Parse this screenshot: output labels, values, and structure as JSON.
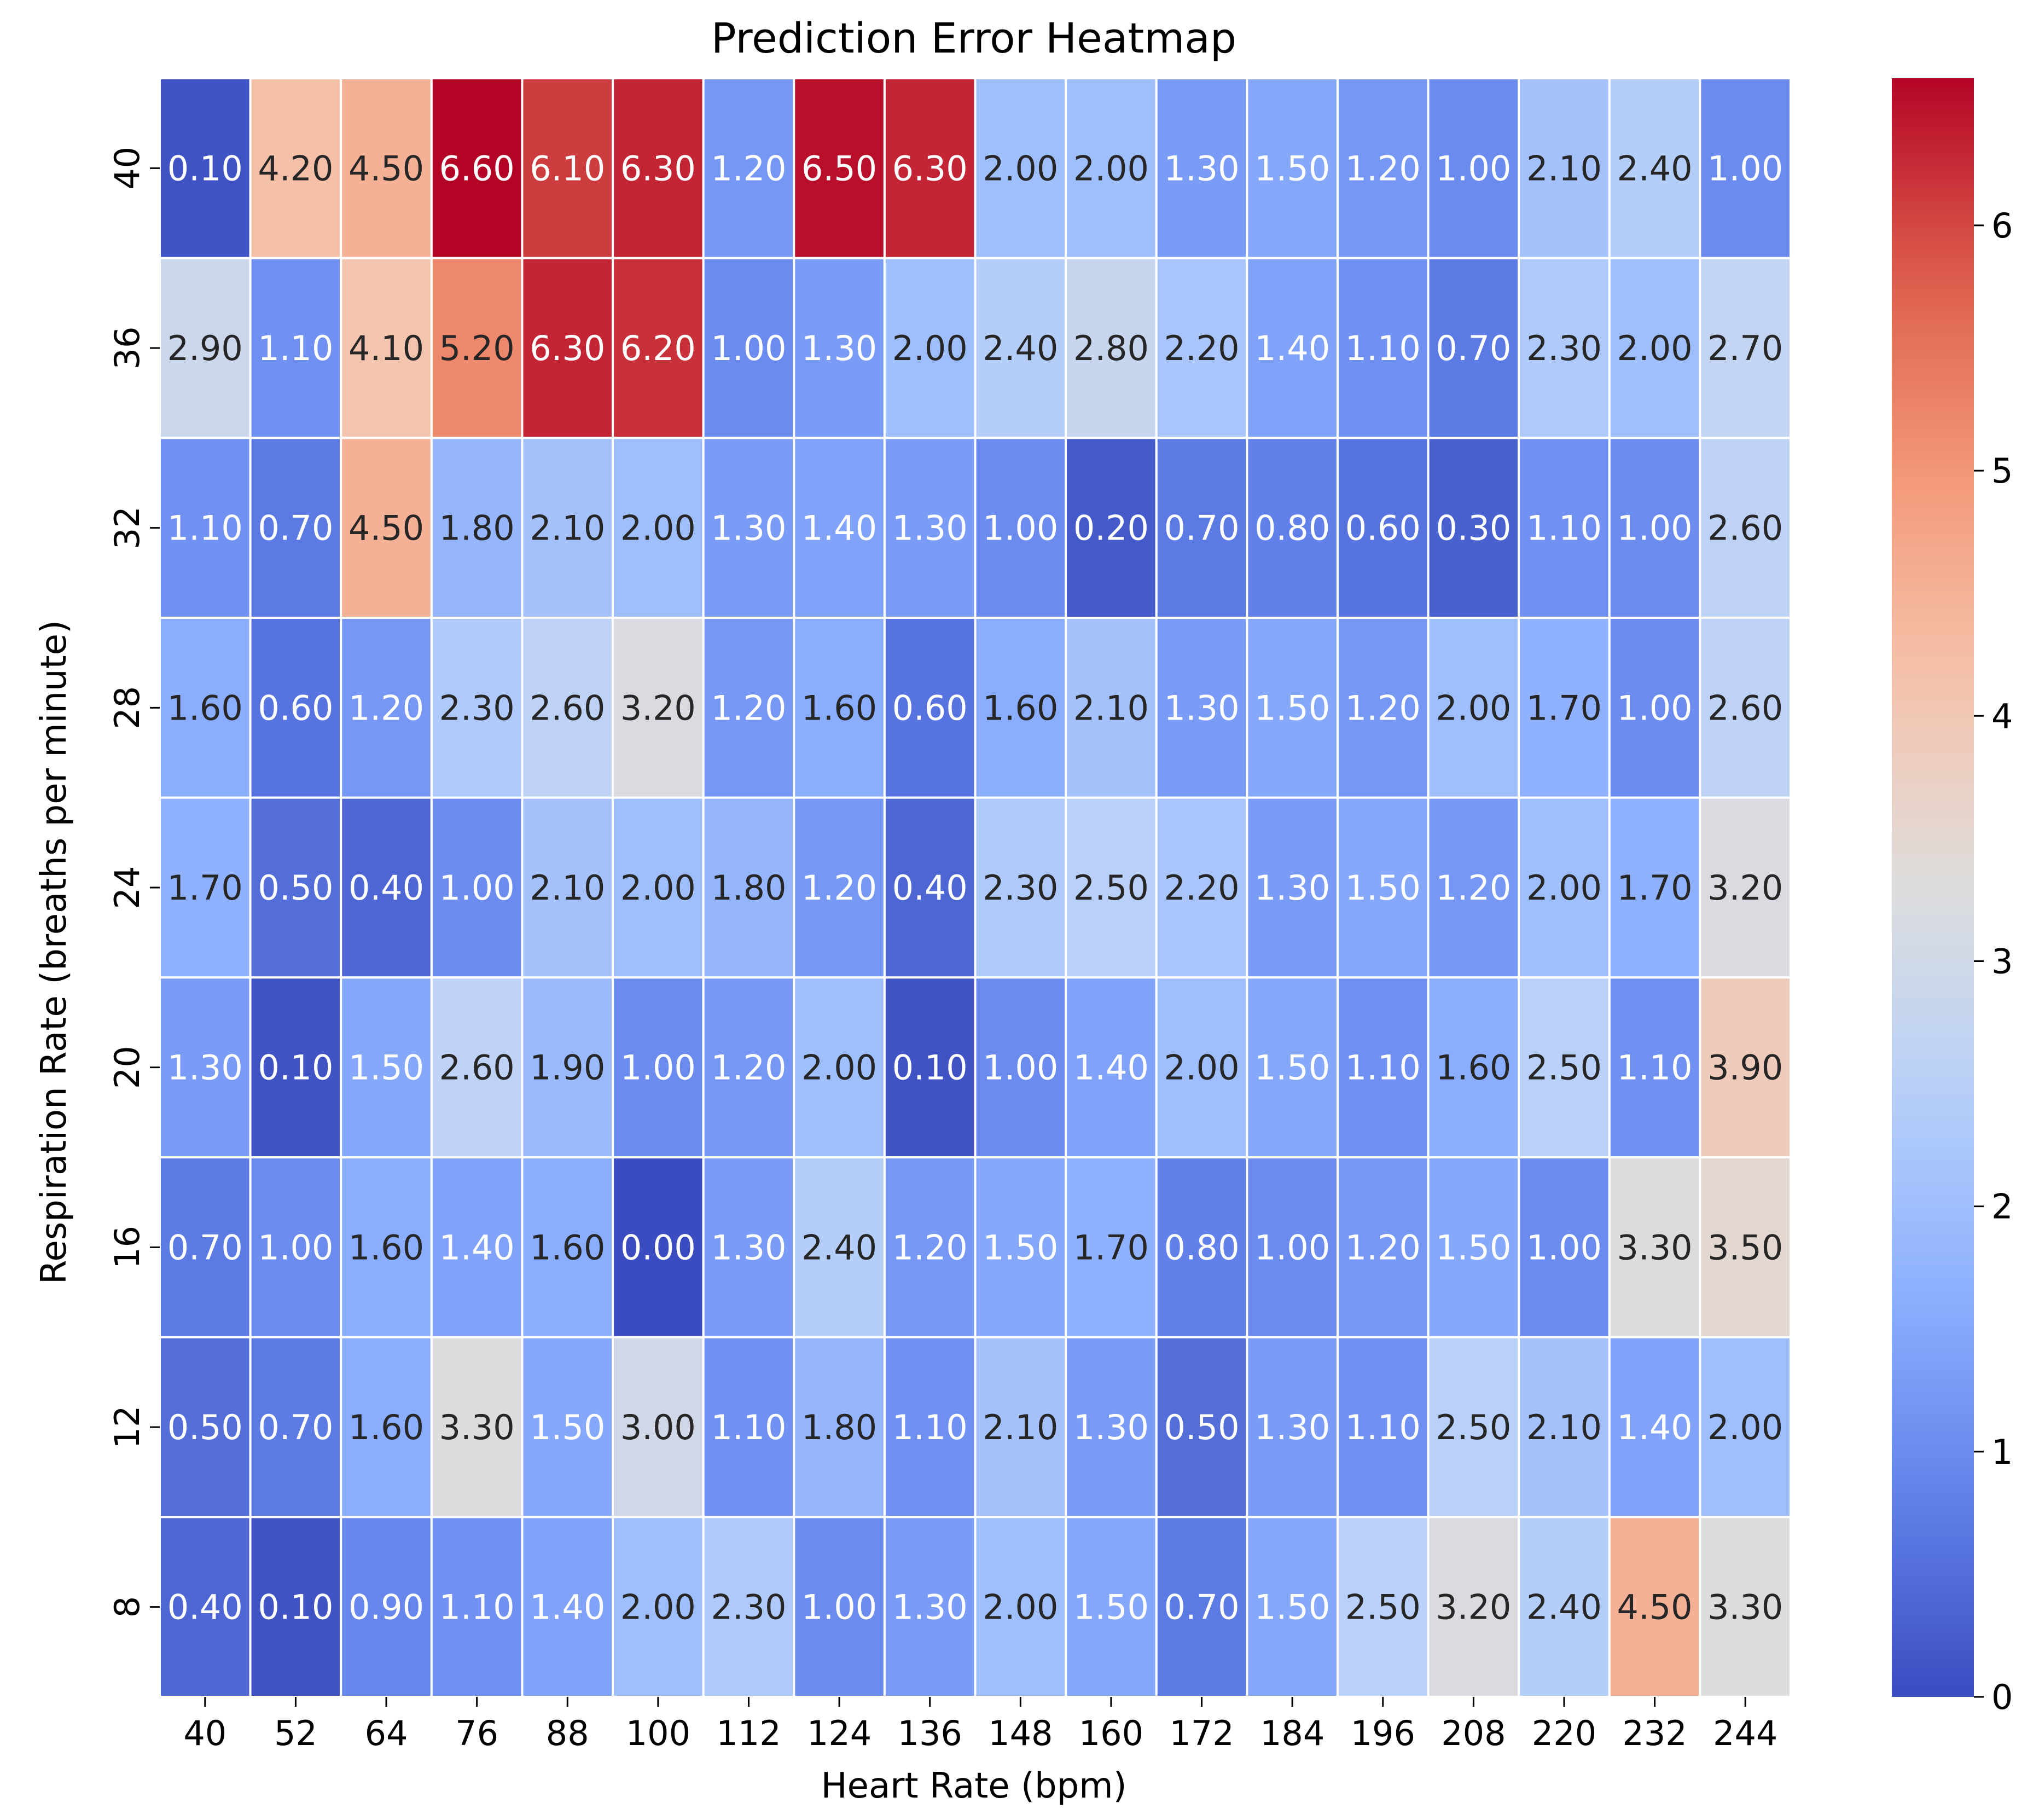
{
  "chart_data": {
    "type": "heatmap",
    "title": "Prediction Error Heatmap",
    "xlabel": "Heart Rate (bpm)",
    "ylabel": "Respiration Rate (breaths per minute)",
    "x_categories": [
      "40",
      "52",
      "64",
      "76",
      "88",
      "100",
      "112",
      "124",
      "136",
      "148",
      "160",
      "172",
      "184",
      "196",
      "208",
      "220",
      "232",
      "244"
    ],
    "y_categories": [
      "40",
      "36",
      "32",
      "28",
      "24",
      "20",
      "16",
      "12",
      "8"
    ],
    "values": [
      [
        0.1,
        4.2,
        4.5,
        6.6,
        6.1,
        6.3,
        1.2,
        6.5,
        6.3,
        2.0,
        2.0,
        1.3,
        1.5,
        1.2,
        1.0,
        2.1,
        2.4,
        1.0
      ],
      [
        2.9,
        1.1,
        4.1,
        5.2,
        6.3,
        6.2,
        1.0,
        1.3,
        2.0,
        2.4,
        2.8,
        2.2,
        1.4,
        1.1,
        0.7,
        2.3,
        2.0,
        2.7
      ],
      [
        1.1,
        0.7,
        4.5,
        1.8,
        2.1,
        2.0,
        1.3,
        1.4,
        1.3,
        1.0,
        0.2,
        0.7,
        0.8,
        0.6,
        0.3,
        1.1,
        1.0,
        2.6
      ],
      [
        1.6,
        0.6,
        1.2,
        2.3,
        2.6,
        3.2,
        1.2,
        1.6,
        0.6,
        1.6,
        2.1,
        1.3,
        1.5,
        1.2,
        2.0,
        1.7,
        1.0,
        2.6
      ],
      [
        1.7,
        0.5,
        0.4,
        1.0,
        2.1,
        2.0,
        1.8,
        1.2,
        0.4,
        2.3,
        2.5,
        2.2,
        1.3,
        1.5,
        1.2,
        2.0,
        1.7,
        3.2
      ],
      [
        1.3,
        0.1,
        1.5,
        2.6,
        1.9,
        1.0,
        1.2,
        2.0,
        0.1,
        1.0,
        1.4,
        2.0,
        1.5,
        1.1,
        1.6,
        2.5,
        1.1,
        3.9
      ],
      [
        0.7,
        1.0,
        1.6,
        1.4,
        1.6,
        0.0,
        1.3,
        2.4,
        1.2,
        1.5,
        1.7,
        0.8,
        1.0,
        1.2,
        1.5,
        1.0,
        3.3,
        3.5
      ],
      [
        0.5,
        0.7,
        1.6,
        3.3,
        1.5,
        3.0,
        1.1,
        1.8,
        1.1,
        2.1,
        1.3,
        0.5,
        1.3,
        1.1,
        2.5,
        2.1,
        1.4,
        2.0
      ],
      [
        0.4,
        0.1,
        0.9,
        1.1,
        1.4,
        2.0,
        2.3,
        1.0,
        1.3,
        2.0,
        1.5,
        0.7,
        1.5,
        2.5,
        3.2,
        2.4,
        4.5,
        3.3
      ]
    ],
    "value_format": "0.00",
    "colormap": "coolwarm",
    "color_range": [
      0,
      6.6
    ],
    "colorbar": {
      "ticks": [
        "0",
        "1",
        "2",
        "3",
        "4",
        "5",
        "6"
      ],
      "tick_values": [
        0,
        1,
        2,
        3,
        4,
        5,
        6
      ]
    },
    "cell_border_color": "#ffffff",
    "legend": "colorbar-right"
  }
}
